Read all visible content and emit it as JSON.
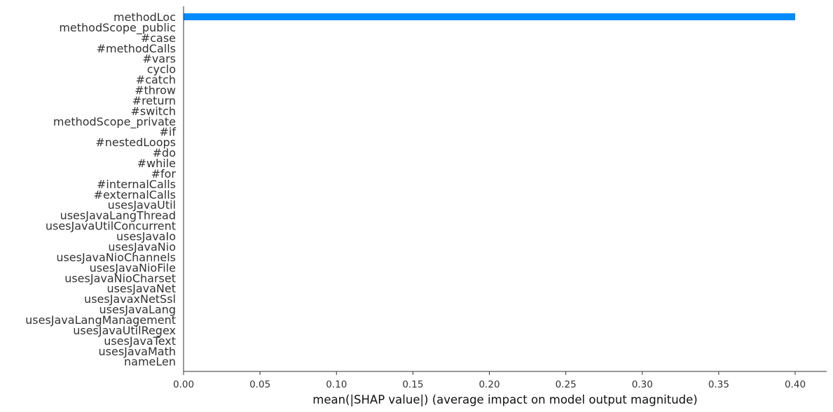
{
  "chart_data": {
    "type": "bar",
    "orientation": "horizontal",
    "categories": [
      "methodLoc",
      "methodScope_public",
      "#case",
      "#methodCalls",
      "#vars",
      "cyclo",
      "#catch",
      "#throw",
      "#return",
      "#switch",
      "methodScope_private",
      "#if",
      "#nestedLoops",
      "#do",
      "#while",
      "#for",
      "#internalCalls",
      "#externalCalls",
      "usesJavaUtil",
      "usesJavaLangThread",
      "usesJavaUtilConcurrent",
      "usesJavaIo",
      "usesJavaNio",
      "usesJavaNioChannels",
      "usesJavaNioFile",
      "usesJavaNioCharset",
      "usesJavaNet",
      "usesJavaxNetSsl",
      "usesJavaLang",
      "usesJavaLangManagement",
      "usesJavaUtilRegex",
      "usesJavaText",
      "usesJavaMath",
      "nameLen"
    ],
    "values": [
      0.4,
      0,
      0,
      0,
      0,
      0,
      0,
      0,
      0,
      0,
      0,
      0,
      0,
      0,
      0,
      0,
      0,
      0,
      0,
      0,
      0,
      0,
      0,
      0,
      0,
      0,
      0,
      0,
      0,
      0,
      0,
      0,
      0,
      0
    ],
    "xlabel": "mean(|SHAP value|) (average impact on model output magnitude)",
    "ylabel": "",
    "title": "",
    "xlim": [
      0.0,
      0.42
    ],
    "xticks": [
      "0.00",
      "0.05",
      "0.10",
      "0.15",
      "0.20",
      "0.25",
      "0.30",
      "0.35",
      "0.40"
    ],
    "bar_color": "#008bfb",
    "grid": false
  }
}
